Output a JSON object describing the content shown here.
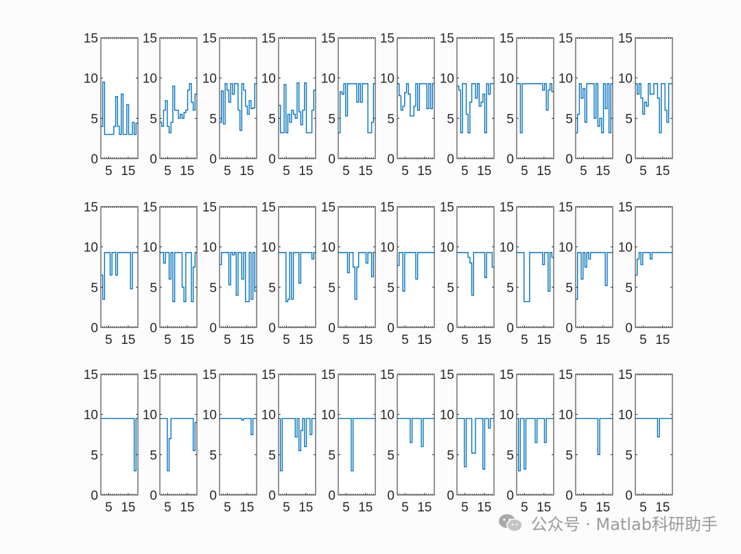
{
  "chart_data": {
    "type": "line",
    "layout": {
      "rows": 3,
      "cols": 10
    },
    "ylim": [
      0,
      15
    ],
    "yticks": [
      0,
      5,
      10,
      15
    ],
    "xlim": [
      1,
      20
    ],
    "xticks": [
      5,
      15
    ],
    "series_color": "#0072BD",
    "panels": [
      [
        4,
        9.5,
        3,
        3,
        3,
        3,
        3,
        4,
        7.7,
        4,
        3,
        8,
        3,
        3,
        6.7,
        3,
        3,
        4.5,
        3,
        4.4
      ],
      [
        4.5,
        4,
        6,
        7.2,
        4,
        3.2,
        4.5,
        9,
        6,
        6,
        5,
        5.5,
        5,
        5.7,
        6,
        8.5,
        9.3,
        7,
        6,
        8
      ],
      [
        4.5,
        8.4,
        4.3,
        9.3,
        8.5,
        7,
        9.3,
        8,
        9.3,
        9.3,
        6,
        3.5,
        9.3,
        8.5,
        6.5,
        5.5,
        7.2,
        6.2,
        6.3,
        9.3
      ],
      [
        6.6,
        3.2,
        3.2,
        9.2,
        3.2,
        5.5,
        4.5,
        6,
        5.5,
        5,
        9.4,
        5.8,
        4.2,
        6,
        9.4,
        3.2,
        3.2,
        3.2,
        6,
        8.5
      ],
      [
        3.2,
        8.3,
        8,
        9.3,
        5.3,
        9.3,
        9.3,
        9.3,
        9.3,
        9.3,
        7,
        9.3,
        7,
        9.3,
        9.3,
        9.3,
        3.2,
        3.2,
        4.5,
        9.3
      ],
      [
        9.3,
        7.8,
        6,
        6.5,
        8.2,
        9.3,
        8,
        5.3,
        5.3,
        6.5,
        9.3,
        6,
        9.3,
        9.3,
        9.3,
        9.3,
        6.2,
        9.3,
        6.2,
        9.3
      ],
      [
        9,
        8.5,
        3.2,
        9.3,
        9.3,
        5.5,
        3.2,
        7,
        9.3,
        9.3,
        7.5,
        9.3,
        6.5,
        7,
        8,
        3.2,
        9.3,
        8,
        9.3,
        9.3
      ],
      [
        9.3,
        9.3,
        3.2,
        9.3,
        9.3,
        9.3,
        9.3,
        9.3,
        9.3,
        9.3,
        9.3,
        9.3,
        9.3,
        9.3,
        8.5,
        9.3,
        6,
        8.5,
        9.3,
        8.3
      ],
      [
        3.2,
        5.5,
        9.3,
        7.5,
        8.7,
        4.5,
        9.3,
        9.3,
        9.3,
        9.3,
        5,
        9.3,
        4,
        5,
        3.2,
        9.3,
        6.2,
        9.3,
        3.2,
        9.3
      ],
      [
        9.3,
        8,
        9.3,
        7.5,
        5.5,
        7,
        6.5,
        9.3,
        8,
        8,
        9.3,
        9.3,
        7.5,
        3.2,
        9.3,
        9.3,
        6,
        4.5,
        9.3,
        9.3
      ],
      [
        6.5,
        3.5,
        9.3,
        9.3,
        9.3,
        6.5,
        9.3,
        9.3,
        6.5,
        9.3,
        9.3,
        9.3,
        9.3,
        9.3,
        9.3,
        9.3,
        4.8,
        9.3,
        9.3,
        9.3
      ],
      [
        9.3,
        9.3,
        8,
        9.3,
        9.3,
        6,
        9.3,
        3.2,
        9.3,
        9.3,
        9.3,
        9.3,
        5,
        3.2,
        9.3,
        9.3,
        9.3,
        3.2,
        7.5,
        9.3
      ],
      [
        7.8,
        9.3,
        9.3,
        9.3,
        9.3,
        5.3,
        9.3,
        9,
        9.3,
        4,
        9.3,
        9.3,
        6,
        9.3,
        3.2,
        3.2,
        9.3,
        3.5,
        9.3,
        4.5
      ],
      [
        9.3,
        9.3,
        9.3,
        9.3,
        3.2,
        3.5,
        9.3,
        3.5,
        9.3,
        9.3,
        9.3,
        5.5,
        9.3,
        9.3,
        9.3,
        9.3,
        9.3,
        9.3,
        8.5,
        9.3
      ],
      [
        9.3,
        9.3,
        9.3,
        9.3,
        9.3,
        6.8,
        9.3,
        9.3,
        7.5,
        3.5,
        7.5,
        9.3,
        9.3,
        9.3,
        9.3,
        8,
        9.3,
        9.3,
        6.3,
        9.3
      ],
      [
        7.7,
        9.3,
        9.3,
        4.5,
        9.3,
        9.3,
        9.3,
        9.3,
        9.3,
        9.3,
        6,
        9.3,
        9.3,
        9.3,
        9.3,
        9.3,
        9.3,
        9.3,
        9.3,
        9.3
      ],
      [
        9.3,
        9.3,
        9.3,
        9.3,
        9.3,
        9.3,
        8.7,
        8,
        4,
        9.3,
        9.3,
        9.3,
        9.3,
        9.3,
        9.3,
        6.2,
        9.3,
        9.3,
        9.3,
        7.5
      ],
      [
        9.3,
        9.3,
        9.3,
        9.3,
        3.2,
        3.2,
        3.2,
        9.3,
        9.3,
        9.3,
        9.3,
        9.3,
        9.3,
        9.3,
        7.8,
        9.3,
        9.3,
        4.5,
        9.3,
        8.7
      ],
      [
        3.5,
        9.3,
        9.3,
        6,
        9.3,
        7.5,
        9.3,
        8.5,
        9.3,
        9.3,
        9.3,
        9.3,
        9.3,
        9.3,
        9.3,
        9.3,
        5.2,
        9.3,
        9.3,
        9.3
      ],
      [
        6.5,
        8.5,
        9.3,
        7.8,
        9.3,
        9.3,
        9.3,
        9.3,
        8.5,
        9.3,
        9.3,
        9.3,
        9.3,
        9.3,
        9.3,
        9.3,
        9.3,
        9.3,
        9.3,
        9.3
      ],
      [
        9.5,
        9.5,
        9.5,
        9.5,
        9.5,
        9.5,
        9.5,
        9.5,
        9.5,
        9.5,
        9.5,
        9.5,
        9.5,
        9.5,
        9.5,
        9.5,
        9.5,
        9.5,
        3,
        9.5
      ],
      [
        9.5,
        9.5,
        9.5,
        9.5,
        3,
        7,
        9.5,
        9.5,
        9.5,
        9.5,
        9.5,
        9.5,
        9.5,
        9.5,
        9.5,
        9.5,
        9.5,
        9.5,
        5.5,
        9
      ],
      [
        9.5,
        9.5,
        9.5,
        9.5,
        9.5,
        9.5,
        9.5,
        9.5,
        9.5,
        9.5,
        9.5,
        9.5,
        9.3,
        9.5,
        9.5,
        9.5,
        9.5,
        7.5,
        9.5,
        9.5
      ],
      [
        9.5,
        3,
        9.5,
        9.5,
        9.5,
        9.5,
        9.5,
        9.5,
        9.5,
        7.2,
        9.5,
        5.5,
        8,
        9.5,
        6,
        9.5,
        9.5,
        7.5,
        9.5,
        9.5
      ],
      [
        9.5,
        9.5,
        9.5,
        9.5,
        9.5,
        9.5,
        9.5,
        3,
        9.5,
        9.5,
        9.5,
        9.5,
        9.5,
        9.5,
        9.5,
        9.5,
        9.5,
        9.5,
        9.5,
        9.5
      ],
      [
        9.5,
        9.5,
        9.5,
        9.5,
        9.5,
        9.5,
        9.5,
        6.5,
        9.5,
        9.5,
        9.5,
        9.5,
        9.5,
        6,
        9.5,
        9.5,
        9.5,
        9.5,
        9.5,
        9.5
      ],
      [
        9.5,
        9.5,
        9.5,
        9.5,
        3.5,
        9.5,
        9.5,
        9.5,
        5.2,
        5.2,
        9.5,
        9.5,
        9.5,
        9.5,
        3.2,
        9.5,
        9.5,
        8.3,
        9.5,
        9.5
      ],
      [
        9.5,
        3,
        9.5,
        9.5,
        3.2,
        9.5,
        9.5,
        9.5,
        9.5,
        9.5,
        6.5,
        9.5,
        9.5,
        9.5,
        9.5,
        6.5,
        9.5,
        9.5,
        9.5,
        9.5
      ],
      [
        9.5,
        9.5,
        9.5,
        9.5,
        9.5,
        9.5,
        9.5,
        9.5,
        9.5,
        9.5,
        9.5,
        9.5,
        5,
        9.5,
        9.5,
        9.5,
        9.5,
        9.5,
        9.5,
        9.5
      ],
      [
        9.5,
        9.5,
        9.5,
        9.5,
        9.5,
        9.5,
        9.5,
        9.5,
        9.5,
        9.5,
        9.5,
        9.5,
        7.2,
        9.5,
        9.5,
        9.5,
        9.5,
        9.5,
        9.5,
        9.5
      ]
    ]
  },
  "watermark": {
    "text": "公众号 · Matlab科研助手",
    "icon": "wechat-icon"
  }
}
